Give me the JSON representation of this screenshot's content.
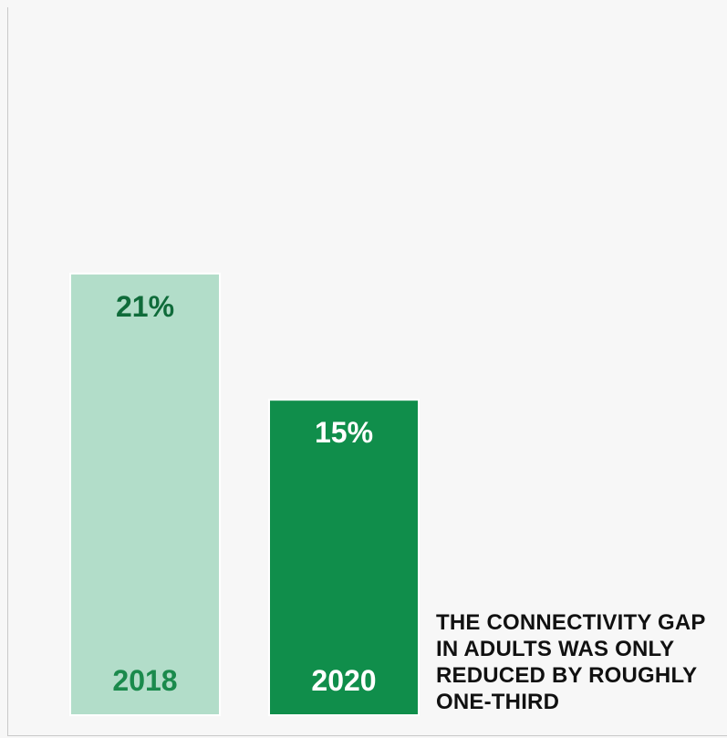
{
  "chart_data": {
    "type": "bar",
    "categories": [
      "2018",
      "2020"
    ],
    "values": [
      21,
      15
    ],
    "value_labels": [
      "21%",
      "15%"
    ],
    "ylim": [
      0,
      27.5
    ],
    "grid": false,
    "annotation": "THE CONNECTIVITY GAP IN ADULTS WAS ONLY REDUCED BY ROUGHLY ONE-THIRD",
    "colors": {
      "bar_2018": "#b2ddc9",
      "bar_2020": "#108e4b",
      "label_2018": "#0f6b3a",
      "label_2018_category": "#1a8a4c",
      "label_2020": "#ffffff"
    }
  }
}
